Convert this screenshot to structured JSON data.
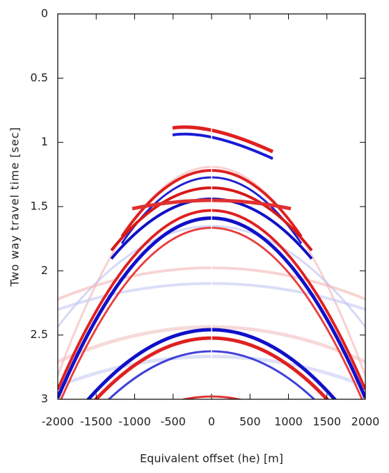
{
  "chart_data": {
    "type": "image",
    "x_label": "Equivalent offset (he) [m]",
    "y_label": "Two way travel time [sec]",
    "xlim": [
      -2000,
      2000
    ],
    "xticks": [
      -2000,
      -1500,
      -1000,
      -500,
      0,
      500,
      1000,
      1500,
      2000
    ],
    "ylim": [
      0,
      3
    ],
    "y_inverted": true,
    "yticks": [
      0,
      0.5,
      1,
      1.5,
      2,
      2.5,
      3
    ]
  }
}
